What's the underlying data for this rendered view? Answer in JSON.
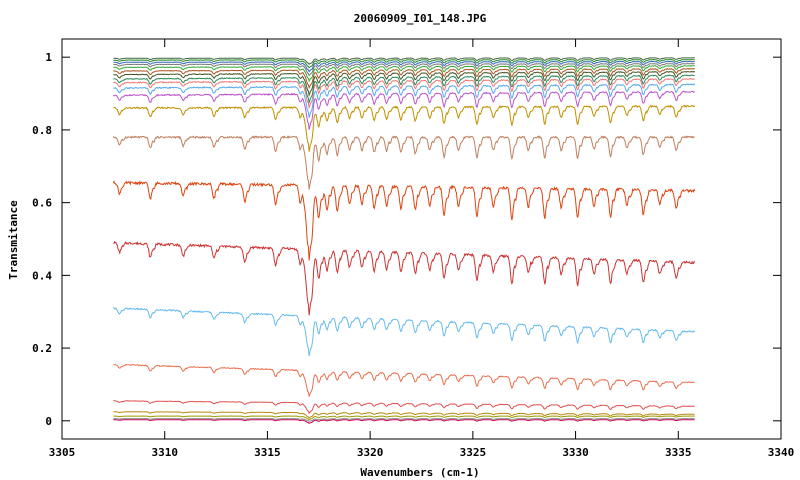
{
  "chart_data": {
    "type": "line",
    "title": "20060909_I01_148.JPG",
    "xlabel": "Wavenumbers (cm-1)",
    "ylabel": "Transmitance",
    "xlim": [
      3305,
      3340
    ],
    "ylim": [
      -0.05,
      1.05
    ],
    "x_ticks": [
      3305,
      3310,
      3315,
      3320,
      3325,
      3330,
      3335,
      3340
    ],
    "y_ticks": [
      0,
      0.2,
      0.4,
      0.6,
      0.8,
      1
    ],
    "y_tick_labels": [
      "0",
      "0.2",
      "0.4",
      "0.6",
      "0.8",
      "1"
    ],
    "x_range": [
      3307.5,
      3335.8
    ],
    "grid": false,
    "legend": "none",
    "absorption_lines": [
      {
        "x": 3307.8,
        "depth": 0.35
      },
      {
        "x": 3309.3,
        "depth": 0.5
      },
      {
        "x": 3310.9,
        "depth": 0.4
      },
      {
        "x": 3312.4,
        "depth": 0.45
      },
      {
        "x": 3313.9,
        "depth": 0.55
      },
      {
        "x": 3315.4,
        "depth": 0.65
      },
      {
        "x": 3316.6,
        "depth": 0.55
      },
      {
        "x": 3317.0,
        "depth": 2.0
      },
      {
        "x": 3317.5,
        "depth": 0.9
      },
      {
        "x": 3317.9,
        "depth": 0.7
      },
      {
        "x": 3318.4,
        "depth": 0.8
      },
      {
        "x": 3319.0,
        "depth": 0.6
      },
      {
        "x": 3319.6,
        "depth": 0.6
      },
      {
        "x": 3320.2,
        "depth": 0.7
      },
      {
        "x": 3320.8,
        "depth": 0.65
      },
      {
        "x": 3321.5,
        "depth": 0.7
      },
      {
        "x": 3322.2,
        "depth": 0.75
      },
      {
        "x": 3322.9,
        "depth": 0.6
      },
      {
        "x": 3323.6,
        "depth": 0.9
      },
      {
        "x": 3324.3,
        "depth": 0.6
      },
      {
        "x": 3325.2,
        "depth": 0.95
      },
      {
        "x": 3326.0,
        "depth": 0.6
      },
      {
        "x": 3326.9,
        "depth": 1.0
      },
      {
        "x": 3327.7,
        "depth": 0.6
      },
      {
        "x": 3328.5,
        "depth": 0.95
      },
      {
        "x": 3329.3,
        "depth": 0.6
      },
      {
        "x": 3330.1,
        "depth": 0.95
      },
      {
        "x": 3330.9,
        "depth": 0.55
      },
      {
        "x": 3331.7,
        "depth": 0.9
      },
      {
        "x": 3332.5,
        "depth": 0.5
      },
      {
        "x": 3333.3,
        "depth": 0.8
      },
      {
        "x": 3334.1,
        "depth": 0.45
      },
      {
        "x": 3334.9,
        "depth": 0.6
      }
    ],
    "series": [
      {
        "color": "#cc0055",
        "start": 0.003,
        "end": 0.003,
        "scale": 0.004
      },
      {
        "color": "#888888",
        "start": 0.006,
        "end": 0.006,
        "scale": 0.003
      },
      {
        "color": "#999900",
        "start": 0.013,
        "end": 0.013,
        "scale": 0.004
      },
      {
        "color": "#b8860b",
        "start": 0.025,
        "end": 0.018,
        "scale": 0.006
      },
      {
        "color": "#e05050",
        "start": 0.055,
        "end": 0.04,
        "scale": 0.012
      },
      {
        "color": "#e87050",
        "start": 0.155,
        "end": 0.105,
        "scale": 0.03
      },
      {
        "color": "#66bbee",
        "start": 0.31,
        "end": 0.245,
        "scale": 0.045
      },
      {
        "color": "#cc3333",
        "start": 0.49,
        "end": 0.435,
        "scale": 0.075
      },
      {
        "color": "#dd4411",
        "start": 0.655,
        "end": 0.633,
        "scale": 0.085
      },
      {
        "color": "#c08060",
        "start": 0.78,
        "end": 0.78,
        "scale": 0.06
      },
      {
        "color": "#c09000",
        "start": 0.86,
        "end": 0.865,
        "scale": 0.05
      },
      {
        "color": "#bb55cc",
        "start": 0.895,
        "end": 0.905,
        "scale": 0.04
      },
      {
        "color": "#55aaee",
        "start": 0.915,
        "end": 0.925,
        "scale": 0.035
      },
      {
        "color": "#ee7777",
        "start": 0.93,
        "end": 0.94,
        "scale": 0.03
      },
      {
        "color": "#2a8a5a",
        "start": 0.94,
        "end": 0.95,
        "scale": 0.028
      },
      {
        "color": "#445522",
        "start": 0.952,
        "end": 0.96,
        "scale": 0.024
      },
      {
        "color": "#aa5522",
        "start": 0.962,
        "end": 0.968,
        "scale": 0.02
      },
      {
        "color": "#33aa33",
        "start": 0.972,
        "end": 0.976,
        "scale": 0.016
      },
      {
        "color": "#777777",
        "start": 0.98,
        "end": 0.982,
        "scale": 0.013
      },
      {
        "color": "#3366bb",
        "start": 0.986,
        "end": 0.988,
        "scale": 0.011
      },
      {
        "color": "#228822",
        "start": 0.992,
        "end": 0.993,
        "scale": 0.009
      },
      {
        "color": "#446644",
        "start": 0.997,
        "end": 0.998,
        "scale": 0.007
      }
    ]
  }
}
